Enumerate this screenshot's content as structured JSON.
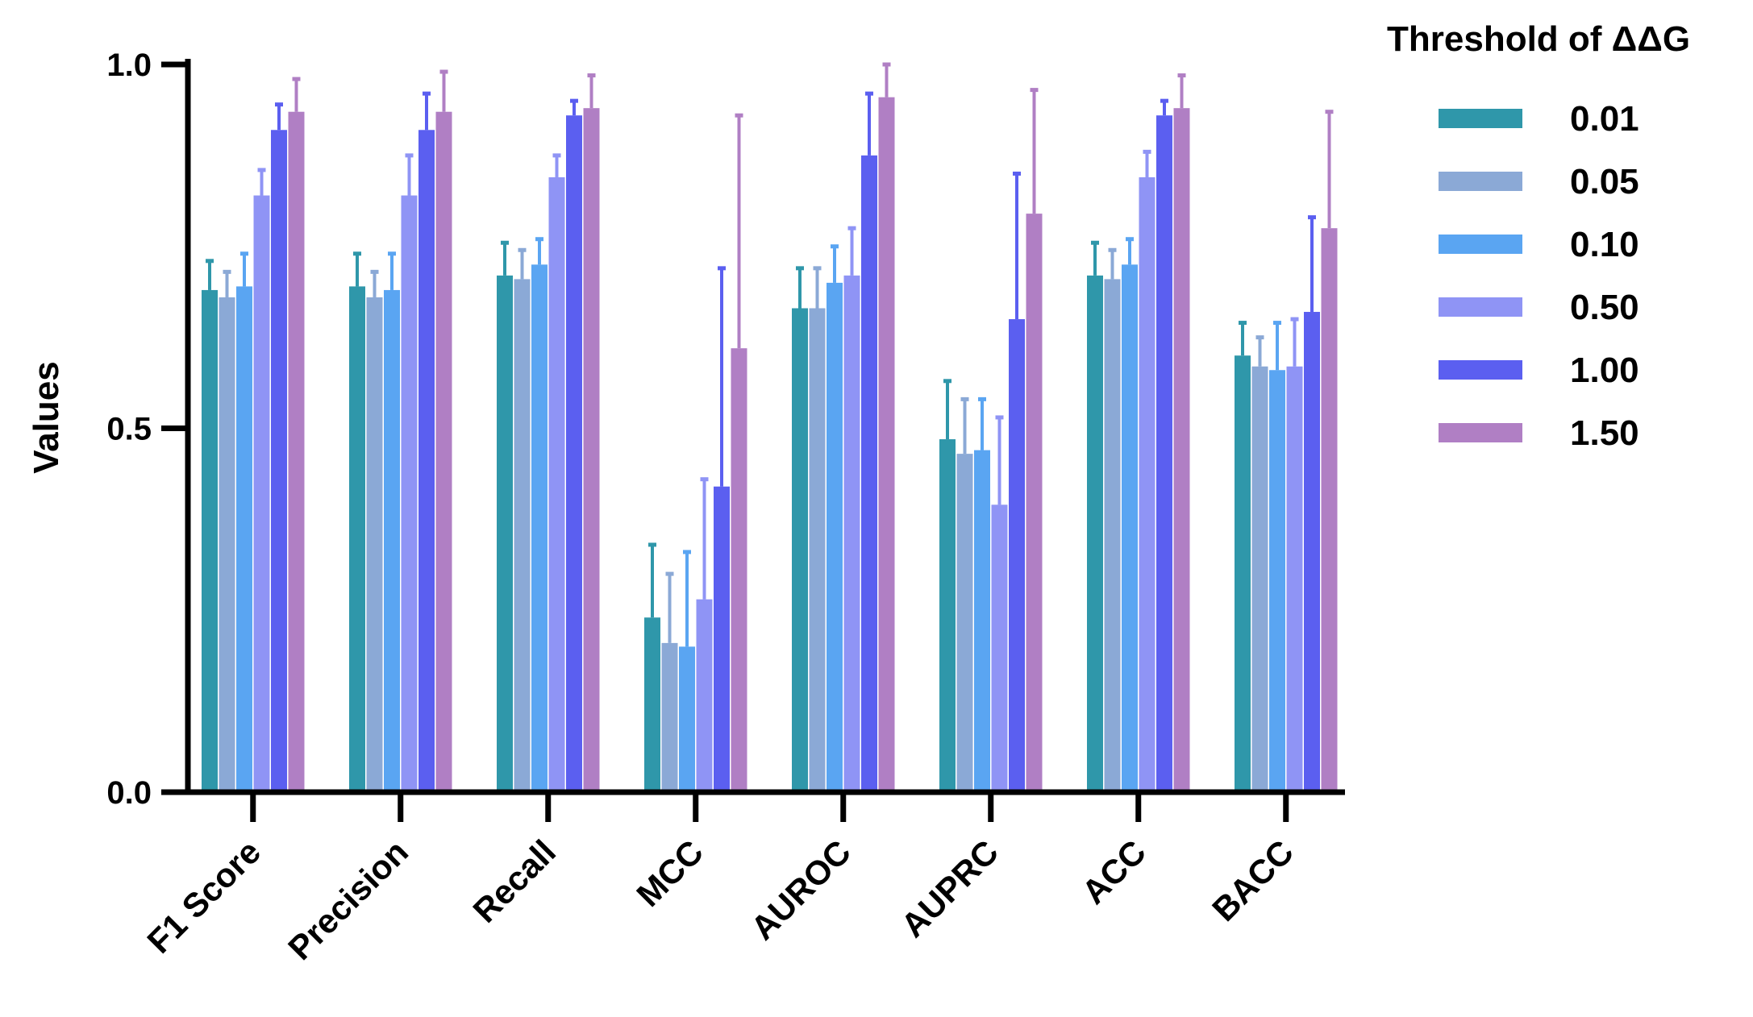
{
  "chart_data": {
    "type": "bar",
    "title": "",
    "xlabel": "",
    "ylabel": "Values",
    "ylim": [
      0,
      1
    ],
    "yticks": [
      "0.0",
      "0.5",
      "1.0"
    ],
    "grid": false,
    "legend": {
      "title": "Threshold of ΔΔG",
      "placement": "right"
    },
    "categories": [
      "F1 Score",
      "Precision",
      "Recall",
      "MCC",
      "AUROC",
      "AUPRC",
      "ACC",
      "BACC"
    ],
    "series": [
      {
        "name": "0.01",
        "color": "#2f97aa",
        "values": [
          0.69,
          0.695,
          0.71,
          0.24,
          0.665,
          0.485,
          0.71,
          0.6
        ],
        "errors": [
          0.04,
          0.045,
          0.045,
          0.1,
          0.055,
          0.08,
          0.045,
          0.045
        ]
      },
      {
        "name": "0.05",
        "color": "#8ba9d6",
        "values": [
          0.68,
          0.68,
          0.705,
          0.205,
          0.665,
          0.465,
          0.705,
          0.585
        ],
        "errors": [
          0.035,
          0.035,
          0.04,
          0.095,
          0.055,
          0.075,
          0.04,
          0.04
        ]
      },
      {
        "name": "0.10",
        "color": "#5aa5f2",
        "values": [
          0.695,
          0.69,
          0.725,
          0.2,
          0.7,
          0.47,
          0.725,
          0.58
        ],
        "errors": [
          0.045,
          0.05,
          0.035,
          0.13,
          0.05,
          0.07,
          0.035,
          0.065
        ]
      },
      {
        "name": "0.50",
        "color": "#8f94f5",
        "values": [
          0.82,
          0.82,
          0.845,
          0.265,
          0.71,
          0.395,
          0.845,
          0.585
        ],
        "errors": [
          0.035,
          0.055,
          0.03,
          0.165,
          0.065,
          0.12,
          0.035,
          0.065
        ]
      },
      {
        "name": "1.00",
        "color": "#5b5ff0",
        "values": [
          0.91,
          0.91,
          0.93,
          0.42,
          0.875,
          0.65,
          0.93,
          0.66
        ],
        "errors": [
          0.035,
          0.05,
          0.02,
          0.3,
          0.085,
          0.2,
          0.02,
          0.13
        ]
      },
      {
        "name": "1.50",
        "color": "#b07fc4",
        "values": [
          0.935,
          0.935,
          0.94,
          0.61,
          0.955,
          0.795,
          0.94,
          0.775
        ],
        "errors": [
          0.045,
          0.055,
          0.045,
          0.32,
          0.045,
          0.17,
          0.045,
          0.16
        ]
      }
    ]
  }
}
